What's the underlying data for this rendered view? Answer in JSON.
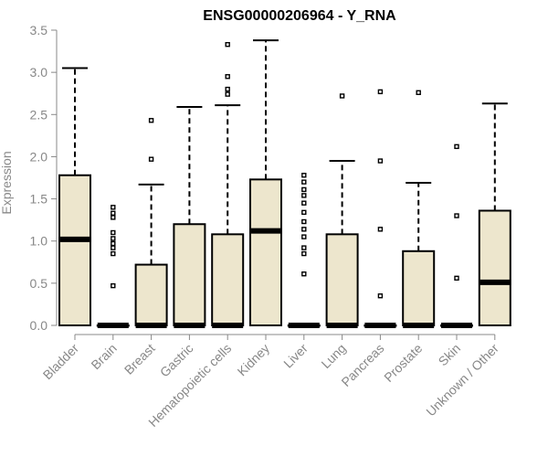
{
  "colors": {
    "box_fill": "#ede6cd",
    "line": "#000000",
    "axis": "#888888"
  },
  "chart_data": {
    "type": "boxplot",
    "title": "ENSG00000206964 - Y_RNA",
    "xlabel": "",
    "ylabel": "Expression",
    "ylim": [
      0,
      3.5
    ],
    "y_ticks": [
      "0.0",
      "0.5",
      "1.0",
      "1.5",
      "2.0",
      "2.5",
      "3.0",
      "3.5"
    ],
    "grid": false,
    "categories": [
      "Bladder",
      "Brain",
      "Breast",
      "Gastric",
      "Hematopoietic cells",
      "Kidney",
      "Liver",
      "Lung",
      "Pancreas",
      "Prostate",
      "Skin",
      "Unknown / Other"
    ],
    "boxes": [
      {
        "q1": 0,
        "median": 1.02,
        "q3": 1.78,
        "whisker_low": 0,
        "whisker_high": 3.05,
        "outliers": []
      },
      {
        "q1": 0,
        "median": 0,
        "q3": 0,
        "whisker_low": 0,
        "whisker_high": 0,
        "outliers": [
          0.47,
          0.85,
          0.92,
          0.97,
          1.03,
          1.1,
          1.28,
          1.33,
          1.4
        ]
      },
      {
        "q1": 0,
        "median": 0,
        "q3": 0.72,
        "whisker_low": 0,
        "whisker_high": 1.67,
        "outliers": [
          1.97,
          2.43
        ]
      },
      {
        "q1": 0,
        "median": 0,
        "q3": 1.2,
        "whisker_low": 0,
        "whisker_high": 2.59,
        "outliers": []
      },
      {
        "q1": 0,
        "median": 0,
        "q3": 1.08,
        "whisker_low": 0,
        "whisker_high": 2.61,
        "outliers": [
          2.74,
          2.8,
          2.95,
          3.33
        ]
      },
      {
        "q1": 0,
        "median": 1.12,
        "q3": 1.73,
        "whisker_low": 0,
        "whisker_high": 3.38,
        "outliers": []
      },
      {
        "q1": 0,
        "median": 0,
        "q3": 0,
        "whisker_low": 0,
        "whisker_high": 0,
        "outliers": [
          0.61,
          0.85,
          0.92,
          1.05,
          1.14,
          1.23,
          1.34,
          1.45,
          1.54,
          1.61,
          1.7,
          1.78
        ]
      },
      {
        "q1": 0,
        "median": 0,
        "q3": 1.08,
        "whisker_low": 0,
        "whisker_high": 1.95,
        "outliers": [
          2.72
        ]
      },
      {
        "q1": 0,
        "median": 0,
        "q3": 0,
        "whisker_low": 0,
        "whisker_high": 0,
        "outliers": [
          0.35,
          1.14,
          1.95,
          2.77
        ]
      },
      {
        "q1": 0,
        "median": 0,
        "q3": 0.88,
        "whisker_low": 0,
        "whisker_high": 1.69,
        "outliers": [
          2.76
        ]
      },
      {
        "q1": 0,
        "median": 0,
        "q3": 0,
        "whisker_low": 0,
        "whisker_high": 0,
        "outliers": [
          0.56,
          1.3,
          2.12
        ]
      },
      {
        "q1": 0,
        "median": 0.51,
        "q3": 1.36,
        "whisker_low": 0,
        "whisker_high": 2.63,
        "outliers": []
      }
    ]
  }
}
